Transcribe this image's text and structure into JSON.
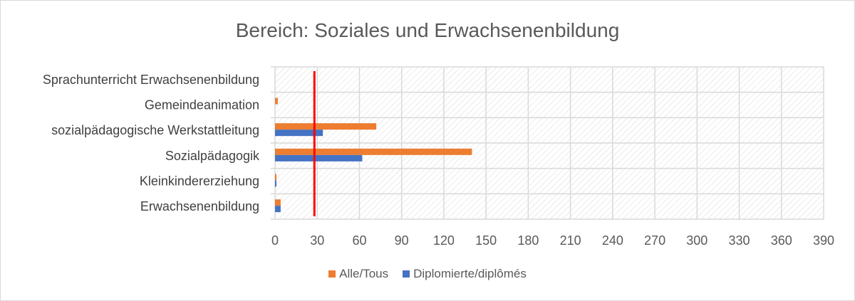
{
  "chart_data": {
    "type": "bar",
    "orientation": "horizontal",
    "title": "Bereich: Soziales und Erwachsenenbildung",
    "categories": [
      "Erwachsenenbildung",
      "Kleinkindererziehung",
      "Sozialpädagogik",
      "sozialpädagogische Werkstattleitung",
      "Gemeindeanimation",
      "Sprachunterricht Erwachsenenbildung"
    ],
    "series": [
      {
        "name": "Alle/Tous",
        "color": "#ED7D31",
        "values": [
          4,
          1,
          140,
          72,
          2,
          0
        ]
      },
      {
        "name": "Diplomierte/diplômés",
        "color": "#4472C4",
        "values": [
          4,
          1,
          62,
          34,
          0,
          0
        ]
      }
    ],
    "reference_line": {
      "value": 28,
      "color": "#FF0000"
    },
    "xlim": [
      0,
      390
    ],
    "xticks": [
      "0",
      "30",
      "60",
      "90",
      "120",
      "150",
      "180",
      "210",
      "240",
      "270",
      "300",
      "330",
      "360",
      "390"
    ],
    "grid": true,
    "legend": "bottom",
    "plot_background": "hatched"
  }
}
